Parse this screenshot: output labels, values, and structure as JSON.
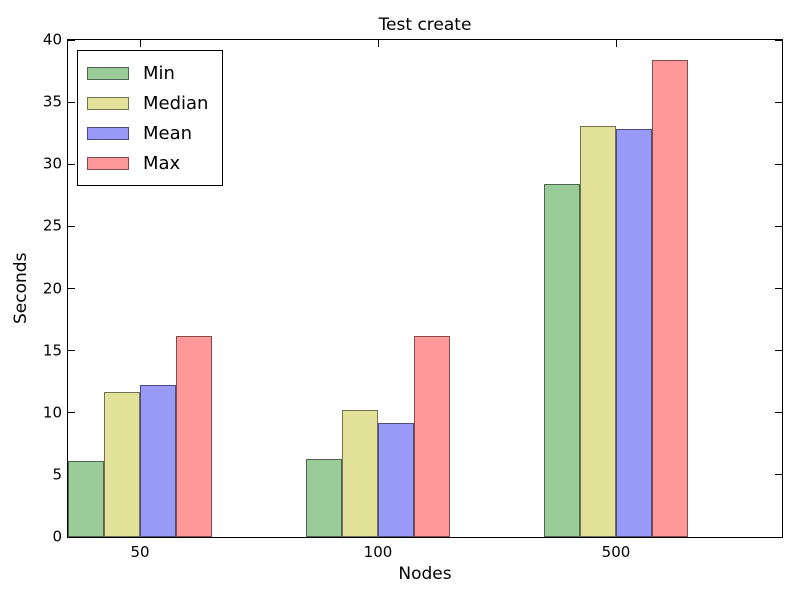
{
  "chart_data": {
    "type": "bar",
    "title": "Test create",
    "xlabel": "Nodes",
    "ylabel": "Seconds",
    "categories": [
      "50",
      "100",
      "500"
    ],
    "series": [
      {
        "name": "Min",
        "color": "#99cc99",
        "edge_color": "#4d664d",
        "values": [
          6.1,
          6.3,
          28.4
        ]
      },
      {
        "name": "Median",
        "color": "#e2e29b",
        "edge_color": "#71714e",
        "values": [
          11.7,
          10.2,
          33.1
        ]
      },
      {
        "name": "Mean",
        "color": "#9999f8",
        "edge_color": "#4d4d7c",
        "values": [
          12.2,
          9.2,
          32.8
        ]
      },
      {
        "name": "Max",
        "color": "#ff9898",
        "edge_color": "#804c4c",
        "values": [
          16.2,
          16.2,
          38.4
        ]
      }
    ],
    "ylim": [
      0,
      40
    ],
    "yticks": [
      0,
      5,
      10,
      15,
      20,
      25,
      30,
      35,
      40
    ],
    "grid": false,
    "legend": {
      "position": "upper-left",
      "entries": [
        "Min",
        "Median",
        "Mean",
        "Max"
      ]
    }
  }
}
